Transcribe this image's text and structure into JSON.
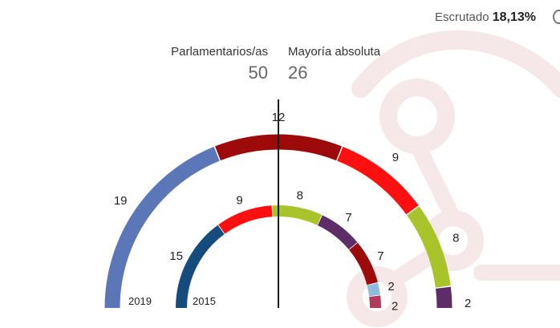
{
  "header": {
    "scrutiny_label": "Escrutado",
    "scrutiny_value": "18,13%"
  },
  "summary": {
    "seats_label": "Parlamentarios/as",
    "seats_value": "50",
    "majority_label": "Mayoría absoluta",
    "majority_value": "26"
  },
  "chart_data": {
    "type": "hemicycle",
    "total_seats": 50,
    "majority": 26,
    "rings": [
      {
        "year_label": "2019",
        "segments": [
          {
            "value": 19,
            "color": "#5b77b8"
          },
          {
            "value": 12,
            "color": "#9c0a0a"
          },
          {
            "value": 9,
            "color": "#ff1010"
          },
          {
            "value": 8,
            "color": "#a9c42a"
          },
          {
            "value": 2,
            "color": "#5e2d68"
          }
        ]
      },
      {
        "year_label": "2015",
        "segments": [
          {
            "value": 15,
            "color": "#164b7e"
          },
          {
            "value": 9,
            "color": "#ff1010"
          },
          {
            "value": 8,
            "color": "#a9c42a"
          },
          {
            "value": 7,
            "color": "#5e2d68"
          },
          {
            "value": 7,
            "color": "#9c0a0a"
          },
          {
            "value": 2,
            "color": "#8dbce0"
          },
          {
            "value": 2,
            "color": "#b23a5c"
          }
        ]
      }
    ]
  }
}
